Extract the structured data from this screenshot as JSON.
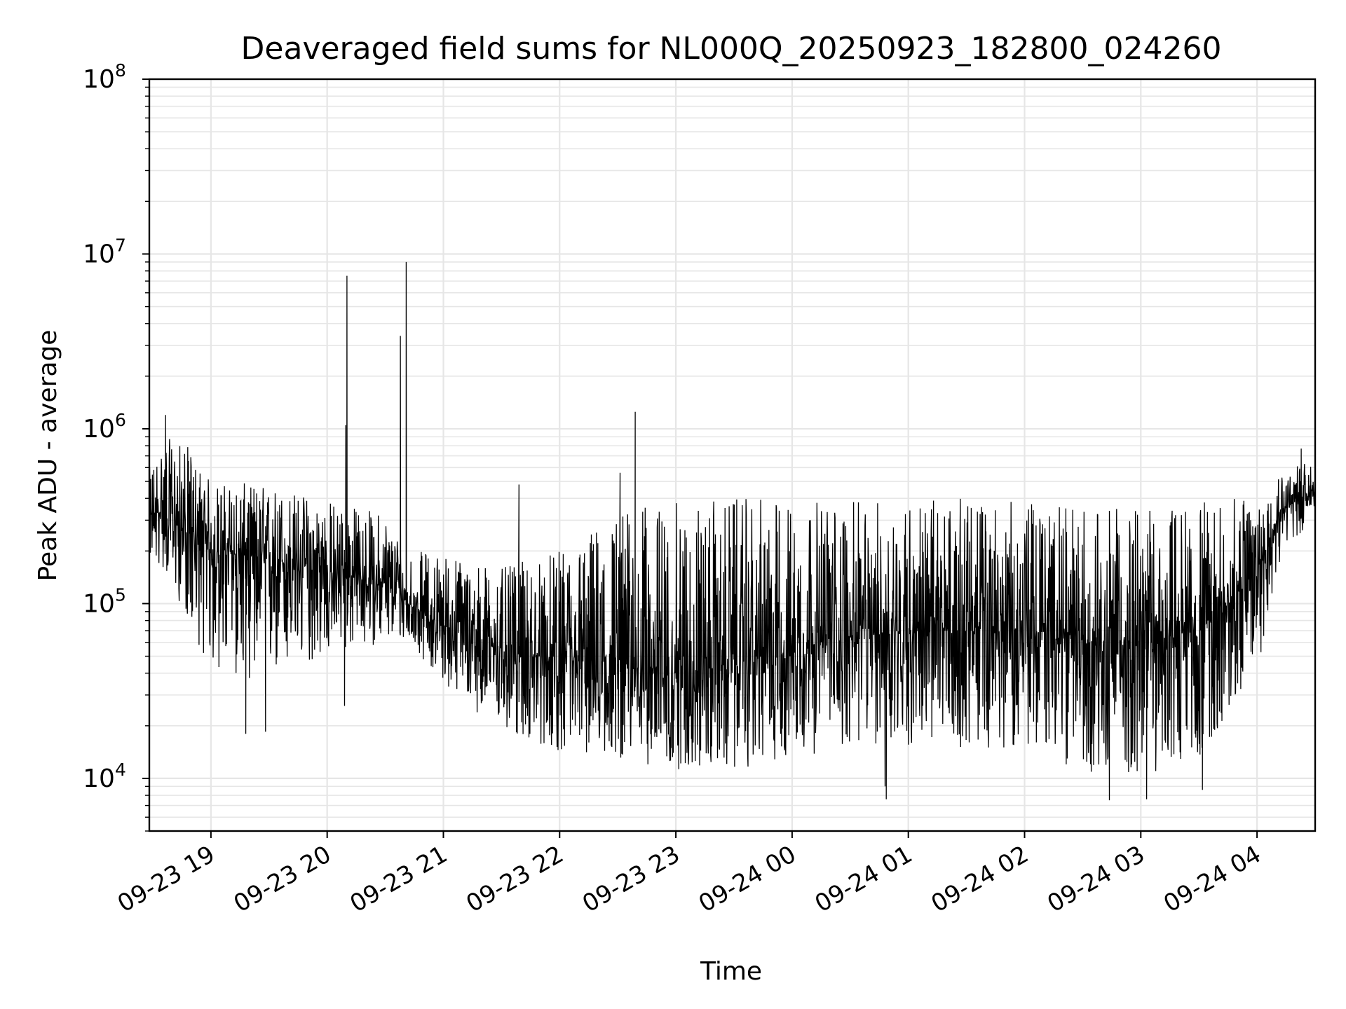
{
  "chart_data": {
    "type": "line",
    "title": "Deaveraged field sums for NL000Q_20250923_182800_024260",
    "xlabel": "Time",
    "ylabel": "Peak ADU - average",
    "yscale": "log",
    "ylim": [
      5000,
      100000000
    ],
    "xlim_hours": [
      18.47,
      28.5
    ],
    "grid": true,
    "line_color": "#000000",
    "x_ticks": [
      {
        "label": "09-23 19",
        "hour": 19
      },
      {
        "label": "09-23 20",
        "hour": 20
      },
      {
        "label": "09-23 21",
        "hour": 21
      },
      {
        "label": "09-23 22",
        "hour": 22
      },
      {
        "label": "09-23 23",
        "hour": 23
      },
      {
        "label": "09-24 00",
        "hour": 24
      },
      {
        "label": "09-24 01",
        "hour": 25
      },
      {
        "label": "09-24 02",
        "hour": 26
      },
      {
        "label": "09-24 03",
        "hour": 27
      },
      {
        "label": "09-24 04",
        "hour": 28
      }
    ],
    "y_ticks": [
      {
        "base": "10",
        "exp": "4",
        "value": 10000
      },
      {
        "base": "10",
        "exp": "5",
        "value": 100000
      },
      {
        "base": "10",
        "exp": "6",
        "value": 1000000
      },
      {
        "base": "10",
        "exp": "7",
        "value": 10000000
      },
      {
        "base": "10",
        "exp": "8",
        "value": 100000000
      }
    ],
    "series": [
      {
        "name": "Peak ADU - average",
        "envelope": [
          {
            "hour": 18.47,
            "low": 180000,
            "high": 600000,
            "median": 300000
          },
          {
            "hour": 18.6,
            "low": 150000,
            "high": 900000,
            "median": 350000
          },
          {
            "hour": 18.8,
            "low": 80000,
            "high": 800000,
            "median": 250000
          },
          {
            "hour": 19.0,
            "low": 40000,
            "high": 500000,
            "median": 200000
          },
          {
            "hour": 19.5,
            "low": 35000,
            "high": 480000,
            "median": 180000
          },
          {
            "hour": 20.0,
            "low": 50000,
            "high": 400000,
            "median": 150000
          },
          {
            "hour": 20.5,
            "low": 60000,
            "high": 330000,
            "median": 130000
          },
          {
            "hour": 20.7,
            "low": 60000,
            "high": 200000,
            "median": 100000
          },
          {
            "hour": 21.0,
            "low": 35000,
            "high": 200000,
            "median": 75000
          },
          {
            "hour": 21.5,
            "low": 18000,
            "high": 160000,
            "median": 55000
          },
          {
            "hour": 22.0,
            "low": 14000,
            "high": 200000,
            "median": 45000
          },
          {
            "hour": 22.5,
            "low": 13000,
            "high": 350000,
            "median": 45000
          },
          {
            "hour": 23.0,
            "low": 11000,
            "high": 380000,
            "median": 40000
          },
          {
            "hour": 23.5,
            "low": 11000,
            "high": 400000,
            "median": 45000
          },
          {
            "hour": 24.0,
            "low": 13000,
            "high": 400000,
            "median": 55000
          },
          {
            "hour": 24.5,
            "low": 15000,
            "high": 380000,
            "median": 65000
          },
          {
            "hour": 25.0,
            "low": 15000,
            "high": 400000,
            "median": 70000
          },
          {
            "hour": 25.5,
            "low": 15000,
            "high": 400000,
            "median": 70000
          },
          {
            "hour": 26.0,
            "low": 15000,
            "high": 380000,
            "median": 70000
          },
          {
            "hour": 26.5,
            "low": 11000,
            "high": 360000,
            "median": 60000
          },
          {
            "hour": 27.0,
            "low": 10000,
            "high": 350000,
            "median": 60000
          },
          {
            "hour": 27.5,
            "low": 13000,
            "high": 380000,
            "median": 70000
          },
          {
            "hour": 28.0,
            "low": 40000,
            "high": 420000,
            "median": 150000
          },
          {
            "hour": 28.2,
            "low": 180000,
            "high": 600000,
            "median": 350000
          },
          {
            "hour": 28.5,
            "low": 300000,
            "high": 650000,
            "median": 450000
          }
        ],
        "spikes": [
          {
            "hour": 18.61,
            "value": 1200000
          },
          {
            "hour": 20.17,
            "value": 7500000
          },
          {
            "hour": 20.16,
            "value": 1050000
          },
          {
            "hour": 20.15,
            "value": 26000
          },
          {
            "hour": 20.63,
            "value": 3400000
          },
          {
            "hour": 20.68,
            "value": 9000000
          },
          {
            "hour": 22.65,
            "value": 1250000
          },
          {
            "hour": 21.65,
            "value": 480000
          },
          {
            "hour": 22.52,
            "value": 560000
          },
          {
            "hour": 24.8,
            "value": 9000
          },
          {
            "hour": 24.81,
            "value": 7600
          },
          {
            "hour": 26.73,
            "value": 7500
          },
          {
            "hour": 27.05,
            "value": 7600
          },
          {
            "hour": 27.53,
            "value": 8600
          },
          {
            "hour": 28.38,
            "value": 770000
          },
          {
            "hour": 19.3,
            "value": 18000
          },
          {
            "hour": 19.47,
            "value": 18500
          }
        ]
      }
    ]
  }
}
